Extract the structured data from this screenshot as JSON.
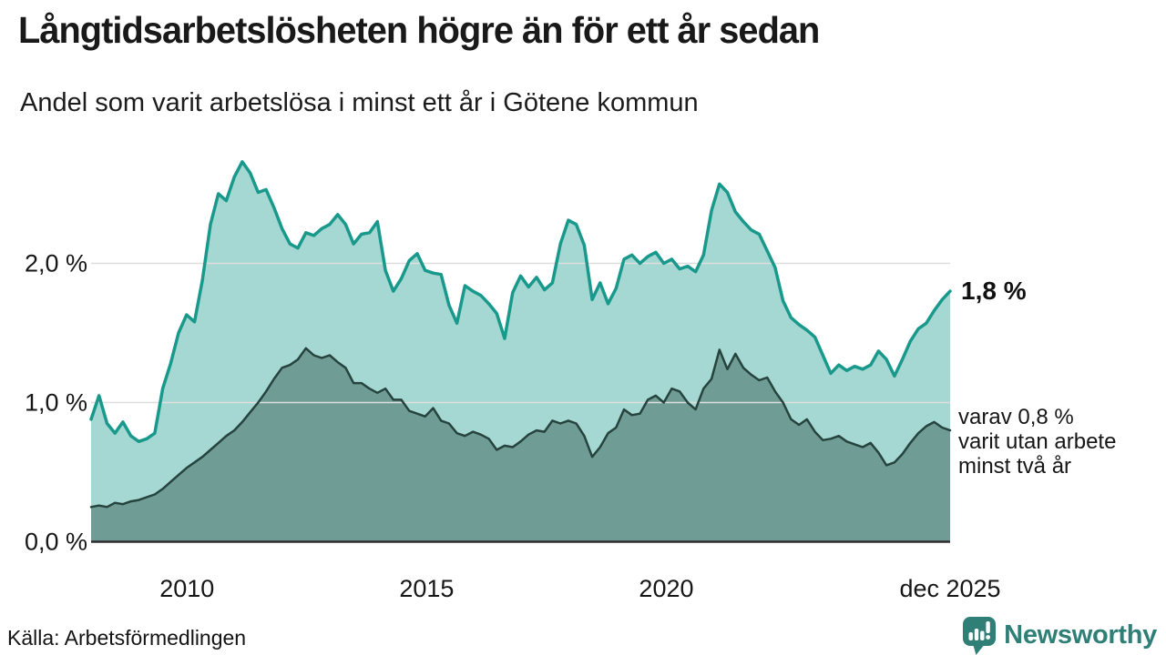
{
  "header": {
    "title": "Långtidsarbetslösheten högre än för ett år sedan",
    "subtitle": "Andel som varit arbetslösa i minst ett år i Götene kommun"
  },
  "chart_data": {
    "type": "area",
    "title": "Långtidsarbetslösheten högre än för ett år sedan",
    "subtitle": "Andel som varit arbetslösa i minst ett år i Götene kommun",
    "unit": "%",
    "xlim": [
      2008.0,
      2025.92
    ],
    "ylim": [
      0,
      2.8
    ],
    "grid": "horizontal",
    "x_step_months": 2,
    "x_axis": {
      "ticks": [
        {
          "label": "2010",
          "year": 2010
        },
        {
          "label": "2015",
          "year": 2015
        },
        {
          "label": "2020",
          "year": 2020
        },
        {
          "label": "dec 2025",
          "year": 2025.92
        }
      ]
    },
    "y_axis": {
      "ticks": [
        {
          "label": "0,0 %",
          "value": 0
        },
        {
          "label": "1,0 %",
          "value": 1
        },
        {
          "label": "2,0 %",
          "value": 2
        }
      ]
    },
    "series": [
      {
        "name": "Andel som varit arbetslösa i minst ett år",
        "line_color": "#18998b",
        "fill_color": "#a5d8d2",
        "line_width": 3.5,
        "end_label": "1,8 %",
        "values": [
          0.88,
          1.05,
          0.85,
          0.78,
          0.86,
          0.76,
          0.72,
          0.74,
          0.78,
          1.1,
          1.28,
          1.5,
          1.63,
          1.58,
          1.88,
          2.28,
          2.5,
          2.45,
          2.62,
          2.73,
          2.65,
          2.51,
          2.53,
          2.4,
          2.25,
          2.14,
          2.11,
          2.22,
          2.2,
          2.25,
          2.28,
          2.35,
          2.28,
          2.14,
          2.21,
          2.22,
          2.3,
          1.95,
          1.8,
          1.89,
          2.02,
          2.07,
          1.95,
          1.93,
          1.92,
          1.7,
          1.57,
          1.84,
          1.8,
          1.77,
          1.71,
          1.64,
          1.46,
          1.79,
          1.91,
          1.83,
          1.9,
          1.81,
          1.86,
          2.14,
          2.31,
          2.28,
          2.13,
          1.74,
          1.86,
          1.71,
          1.82,
          2.03,
          2.06,
          2.0,
          2.05,
          2.08,
          2.0,
          2.03,
          1.96,
          1.98,
          1.94,
          2.06,
          2.38,
          2.57,
          2.51,
          2.37,
          2.3,
          2.24,
          2.21,
          2.09,
          1.97,
          1.73,
          1.61,
          1.56,
          1.52,
          1.47,
          1.34,
          1.21,
          1.27,
          1.23,
          1.26,
          1.24,
          1.27,
          1.37,
          1.31,
          1.19,
          1.31,
          1.44,
          1.53,
          1.57,
          1.66,
          1.74,
          1.8
        ]
      },
      {
        "name": "varav utan arbete minst två år",
        "line_color": "#26433e",
        "fill_color": "#6f9d96",
        "line_width": 2.5,
        "end_label": "varav 0,8 % varit utan arbete minst två år",
        "values": [
          0.25,
          0.26,
          0.25,
          0.28,
          0.27,
          0.29,
          0.3,
          0.32,
          0.34,
          0.38,
          0.43,
          0.48,
          0.53,
          0.57,
          0.61,
          0.66,
          0.71,
          0.76,
          0.8,
          0.86,
          0.93,
          1.0,
          1.08,
          1.17,
          1.25,
          1.27,
          1.31,
          1.39,
          1.34,
          1.32,
          1.34,
          1.29,
          1.25,
          1.14,
          1.14,
          1.1,
          1.07,
          1.1,
          1.02,
          1.02,
          0.94,
          0.92,
          0.9,
          0.96,
          0.87,
          0.85,
          0.78,
          0.76,
          0.79,
          0.77,
          0.74,
          0.66,
          0.69,
          0.68,
          0.72,
          0.77,
          0.8,
          0.79,
          0.87,
          0.85,
          0.87,
          0.85,
          0.76,
          0.61,
          0.68,
          0.78,
          0.82,
          0.95,
          0.91,
          0.92,
          1.02,
          1.05,
          1.0,
          1.1,
          1.08,
          1.0,
          0.95,
          1.1,
          1.17,
          1.38,
          1.24,
          1.35,
          1.25,
          1.2,
          1.16,
          1.18,
          1.08,
          1.0,
          0.88,
          0.84,
          0.88,
          0.79,
          0.73,
          0.74,
          0.76,
          0.72,
          0.7,
          0.68,
          0.71,
          0.64,
          0.55,
          0.57,
          0.63,
          0.71,
          0.78,
          0.83,
          0.86,
          0.82,
          0.8
        ]
      }
    ],
    "annotations": {
      "end_value_label": "1,8 %",
      "sub_label_lines": [
        "varav 0,8 %",
        "varit utan arbete",
        "minst två år"
      ]
    },
    "colors": {
      "gridline": "#dedede",
      "baseline": "#2d2d2d",
      "text": "#161616"
    }
  },
  "footer": {
    "source": "Källa: Arbetsförmedlingen",
    "brand": "Newsworthy",
    "brand_color": "#2f7f77"
  }
}
